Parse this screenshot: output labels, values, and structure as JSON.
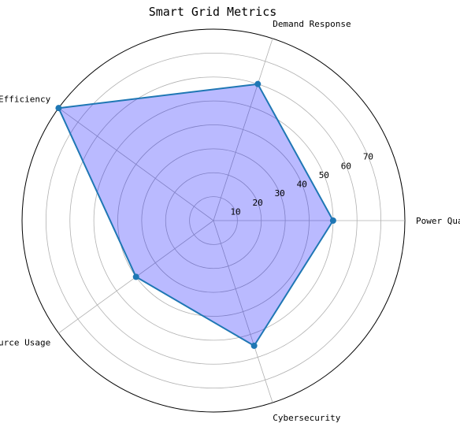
{
  "chart_data": {
    "type": "radar",
    "title": "Smart Grid Metrics",
    "categories": [
      "Power Quality",
      "Demand Response",
      "Grid Efficiency",
      "Resource Usage",
      "Cybersecurity"
    ],
    "series": [
      {
        "values": [
          50,
          60,
          80,
          40,
          55
        ]
      }
    ],
    "radial_ticks": [
      10,
      20,
      30,
      40,
      50,
      60,
      70
    ],
    "rlim": [
      0,
      80
    ],
    "grid": true,
    "legend": "none",
    "colors": {
      "line": "#1f77b4",
      "fill": "#0000ff",
      "fill_opacity": 0.27,
      "grid": "#b0b0b0",
      "frame": "#000000"
    }
  }
}
